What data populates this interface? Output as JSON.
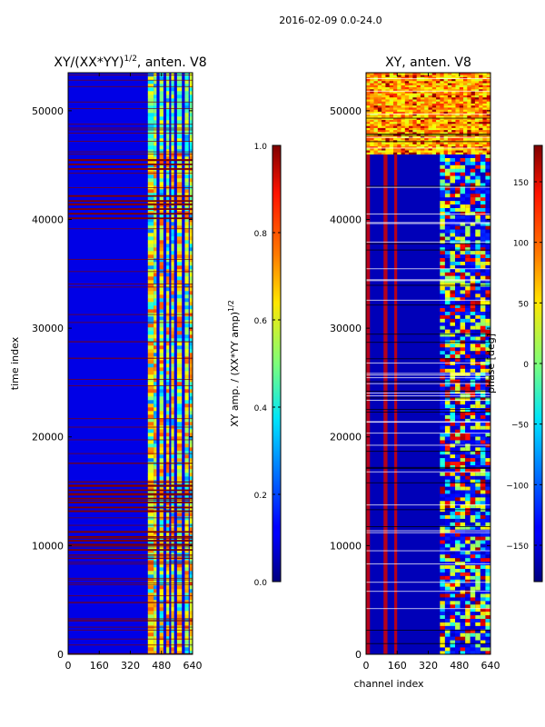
{
  "figure": {
    "suptitle": "2016-02-09 0.0-24.0"
  },
  "chart_data": [
    {
      "type": "heatmap",
      "title_main": "XY/(XX*YY)",
      "title_sup": "1/2",
      "title_rest": ", anten. V8",
      "xlabel": "",
      "ylabel": "time index",
      "xlim": [
        0,
        640
      ],
      "ylim": [
        0,
        53500
      ],
      "xticks": [
        0,
        160,
        320,
        480,
        640
      ],
      "xtick_labels": [
        "0",
        "160",
        "320",
        "480",
        "640"
      ],
      "yticks": [
        0,
        10000,
        20000,
        30000,
        40000,
        50000
      ],
      "ytick_labels": [
        "0",
        "10000",
        "20000",
        "30000",
        "40000",
        "50000"
      ],
      "colorbar": {
        "label_main": "XY amp. / (XX*YY amp)",
        "label_sup": "1/2",
        "range": [
          0.0,
          1.0
        ],
        "ticks": [
          0.0,
          0.2,
          0.4,
          0.6,
          0.8,
          1.0
        ],
        "tick_labels": [
          "0.0",
          "0.2",
          "0.4",
          "0.6",
          "0.8",
          "1.0"
        ],
        "colormap": "jet"
      },
      "approx_cells": {
        "background_value": 0.1,
        "bright_channel_range": [
          410,
          640
        ],
        "bright_value_range": [
          0.5,
          0.8
        ],
        "flagged_rows_value": 1.0,
        "flagged_row_bands": [
          [
            40000,
            42500
          ],
          [
            44500,
            45500
          ],
          [
            9500,
            11500
          ],
          [
            13000,
            15800
          ]
        ]
      }
    },
    {
      "type": "heatmap",
      "title": "XY, anten. V8",
      "xlabel": "channel index",
      "ylabel": "",
      "xlim": [
        0,
        640
      ],
      "ylim": [
        0,
        53500
      ],
      "xticks": [
        0,
        160,
        320,
        480,
        640
      ],
      "xtick_labels": [
        "0",
        "160",
        "320",
        "480",
        "640"
      ],
      "yticks": [
        0,
        10000,
        20000,
        30000,
        40000,
        50000
      ],
      "ytick_labels": [
        "0",
        "10000",
        "20000",
        "30000",
        "40000",
        "50000"
      ],
      "colorbar": {
        "label": "phase [deg]",
        "range": [
          -180,
          180
        ],
        "ticks": [
          -150,
          -100,
          -50,
          0,
          50,
          100,
          150
        ],
        "tick_labels": [
          "−150",
          "−100",
          "−50",
          "0",
          "50",
          "100",
          "150"
        ],
        "colormap": "jet"
      },
      "approx_cells": {
        "background_phase": -160,
        "upper_block_rows": [
          46000,
          53500
        ],
        "upper_block_phase_range": [
          30,
          120
        ],
        "red_stripe_channels": [
          [
            0,
            20
          ],
          [
            90,
            110
          ],
          [
            145,
            160
          ]
        ],
        "mixed_channel_range": [
          380,
          640
        ]
      }
    }
  ]
}
